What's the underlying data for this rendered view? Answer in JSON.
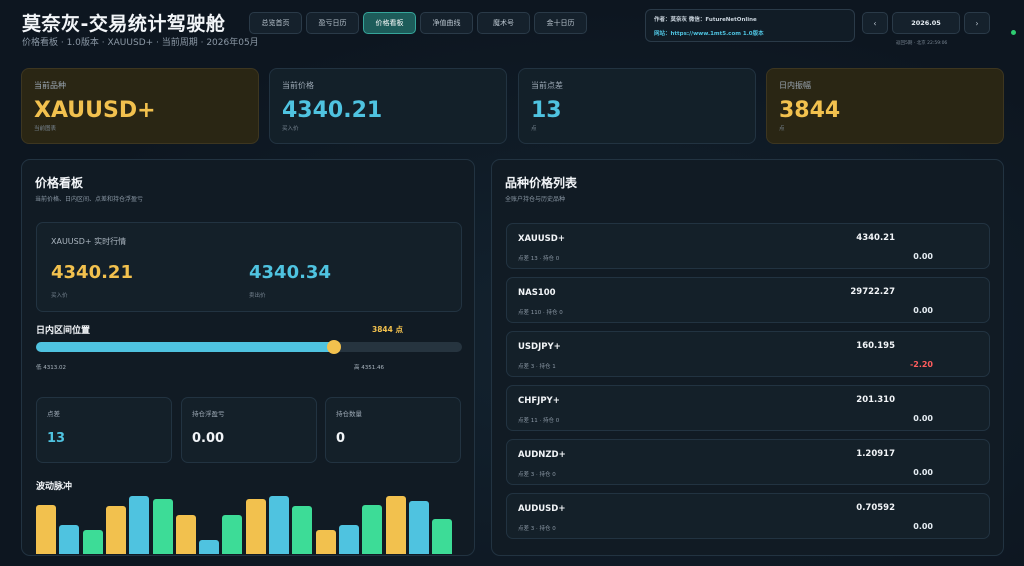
{
  "header": {
    "title": "莫奈灰-交易统计驾驶舱",
    "subtitle": "价格看板 · 1.0版本 · XAUUSD+ · 当前周期 · 2026年05月",
    "tabs": [
      {
        "label": "总览首页",
        "active": false
      },
      {
        "label": "盈亏日历",
        "active": false
      },
      {
        "label": "价格看板",
        "active": true
      },
      {
        "label": "净值曲线",
        "active": false
      },
      {
        "label": "魔术号",
        "active": false
      },
      {
        "label": "金十日历",
        "active": false
      }
    ],
    "info": {
      "line1": "作者：莫奈灰  微信：FutureNetOnline",
      "line2": "网站：https://www.1mt5.com  1.0版本"
    },
    "date": {
      "prev_label": "‹",
      "value": "2026.05",
      "next_label": "›",
      "update_text": "返回5期 · 北京 22:59:06"
    }
  },
  "kpis": [
    {
      "label": "当前品种",
      "value": "XAUUSD+",
      "note": "当前图表",
      "style": "gold"
    },
    {
      "label": "当前价格",
      "value": "4340.21",
      "note": "买入价",
      "style": "blue"
    },
    {
      "label": "当前点差",
      "value": "13",
      "note": "点",
      "style": "blue"
    },
    {
      "label": "日内振幅",
      "value": "3844",
      "note": "点",
      "style": "gold"
    }
  ],
  "price_board": {
    "title": "价格看板",
    "subtitle": "当前价格、日内区间、点差和持仓浮盈亏",
    "quote_title": "XAUUSD+ 实时行情",
    "bid_value": "4340.21",
    "bid_label": "买入价",
    "ask_value": "4340.34",
    "ask_label": "卖出价",
    "range_title": "日内区间位置",
    "range_points": "3844 点",
    "range_position": 0.7,
    "range_low": "低 4313.02",
    "range_high": "高 4351.46",
    "stats": [
      {
        "label": "点差",
        "value": "13",
        "style": "cyan"
      },
      {
        "label": "持仓浮盈亏",
        "value": "0.00",
        "style": "white"
      },
      {
        "label": "持仓数量",
        "value": "0",
        "style": "white"
      }
    ],
    "pulse_title": "波动脉冲",
    "pulse": [
      {
        "value": 0.85,
        "color": "#f2c14e"
      },
      {
        "value": 0.5,
        "color": "#4fc3e0"
      },
      {
        "value": 0.42,
        "color": "#3ddc97"
      },
      {
        "value": 0.82,
        "color": "#f2c14e"
      },
      {
        "value": 1.0,
        "color": "#4fc3e0"
      },
      {
        "value": 0.95,
        "color": "#3ddc97"
      },
      {
        "value": 0.67,
        "color": "#f2c14e"
      },
      {
        "value": 0.24,
        "color": "#4fc3e0"
      },
      {
        "value": 0.67,
        "color": "#3ddc97"
      },
      {
        "value": 0.95,
        "color": "#f2c14e"
      },
      {
        "value": 1.0,
        "color": "#4fc3e0"
      },
      {
        "value": 0.82,
        "color": "#3ddc97"
      },
      {
        "value": 0.42,
        "color": "#f2c14e"
      },
      {
        "value": 0.5,
        "color": "#4fc3e0"
      },
      {
        "value": 0.85,
        "color": "#3ddc97"
      },
      {
        "value": 1.0,
        "color": "#f2c14e"
      },
      {
        "value": 0.91,
        "color": "#4fc3e0"
      },
      {
        "value": 0.6,
        "color": "#3ddc97"
      }
    ]
  },
  "symbol_list": {
    "title": "品种价格列表",
    "subtitle": "全账户持仓与历史品种",
    "items": [
      {
        "symbol": "XAUUSD+",
        "meta": "点差 13 · 持仓 0",
        "price": "4340.21",
        "pnl": "0.00",
        "negative": false
      },
      {
        "symbol": "NAS100",
        "meta": "点差 110 · 持仓 0",
        "price": "29722.27",
        "pnl": "0.00",
        "negative": false
      },
      {
        "symbol": "USDJPY+",
        "meta": "点差 3 · 持仓 1",
        "price": "160.195",
        "pnl": "-2.20",
        "negative": true
      },
      {
        "symbol": "CHFJPY+",
        "meta": "点差 11 · 持仓 0",
        "price": "201.310",
        "pnl": "0.00",
        "negative": false
      },
      {
        "symbol": "AUDNZD+",
        "meta": "点差 3 · 持仓 0",
        "price": "1.20917",
        "pnl": "0.00",
        "negative": false
      },
      {
        "symbol": "AUDUSD+",
        "meta": "点差 3 · 持仓 0",
        "price": "0.70592",
        "pnl": "0.00",
        "negative": false
      }
    ]
  }
}
